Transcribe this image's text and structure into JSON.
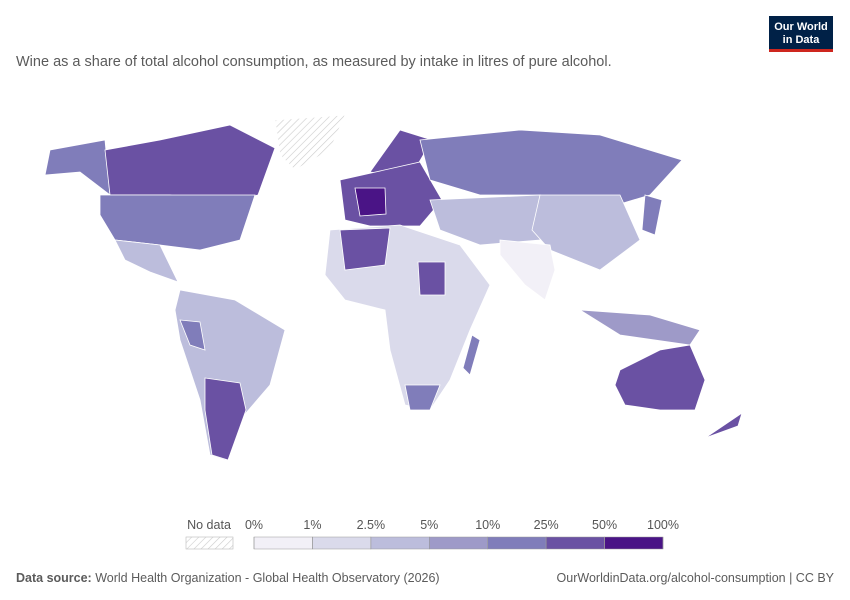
{
  "logo": {
    "line1": "Our World",
    "line2": "in Data"
  },
  "subtitle": "Wine as a share of total alcohol consumption, as measured by intake in litres of pure alcohol.",
  "legend": {
    "no_data": "No data",
    "bins": [
      {
        "value": 0,
        "label": "0%"
      },
      {
        "value": 1,
        "label": "1%"
      },
      {
        "value": 2.5,
        "label": "2.5%"
      },
      {
        "value": 5,
        "label": "5%"
      },
      {
        "value": 10,
        "label": "10%"
      },
      {
        "value": 25,
        "label": "25%"
      },
      {
        "value": 50,
        "label": "50%"
      },
      {
        "value": 100,
        "label": "100%"
      }
    ],
    "colors": [
      "#f2f0f7",
      "#dadaeb",
      "#bcbddc",
      "#9e9ac8",
      "#807dba",
      "#6a51a3",
      "#4a1486"
    ]
  },
  "footer": {
    "source_label": "Data source:",
    "source": "World Health Organization - Global Health Observatory (2026)",
    "url": "OurWorldinData.org/alcohol-consumption | CC BY"
  }
}
